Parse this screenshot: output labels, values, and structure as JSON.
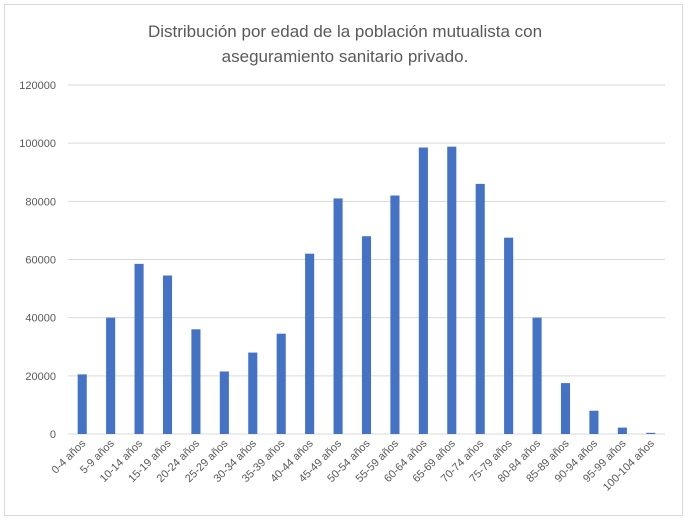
{
  "chart_data": {
    "type": "bar",
    "title_lines": [
      "Distribución por edad de la población mutualista con",
      "aseguramiento sanitario privado."
    ],
    "xlabel": "",
    "ylabel": "",
    "categories": [
      "0-4 años",
      "5-9 años",
      "10-14 años",
      "15-19 años",
      "20-24 años",
      "25-29 años",
      "30-34 años",
      "35-39 años",
      "40-44 años",
      "45-49 años",
      "50-54 años",
      "55-59 años",
      "60-64 años",
      "65-69 años",
      "70-74 años",
      "75-79 años",
      "80-84 años",
      "85-89 años",
      "90-94 años",
      "95-99 años",
      "100-104 años"
    ],
    "values": [
      20500,
      40000,
      58500,
      54500,
      36000,
      21500,
      28000,
      34500,
      62000,
      81000,
      68000,
      82000,
      98500,
      98800,
      86000,
      67500,
      40000,
      17500,
      8000,
      2200,
      400
    ],
    "ylim": [
      0,
      120000
    ],
    "yticks": [
      "0",
      "20000",
      "40000",
      "60000",
      "80000",
      "100000",
      "120000"
    ],
    "ytick_values": [
      0,
      20000,
      40000,
      60000,
      80000,
      100000,
      120000
    ],
    "grid": true,
    "legend": "none",
    "colors": {
      "bar": "#4472c4",
      "grid": "#d9d9d9",
      "text": "#595959"
    }
  }
}
